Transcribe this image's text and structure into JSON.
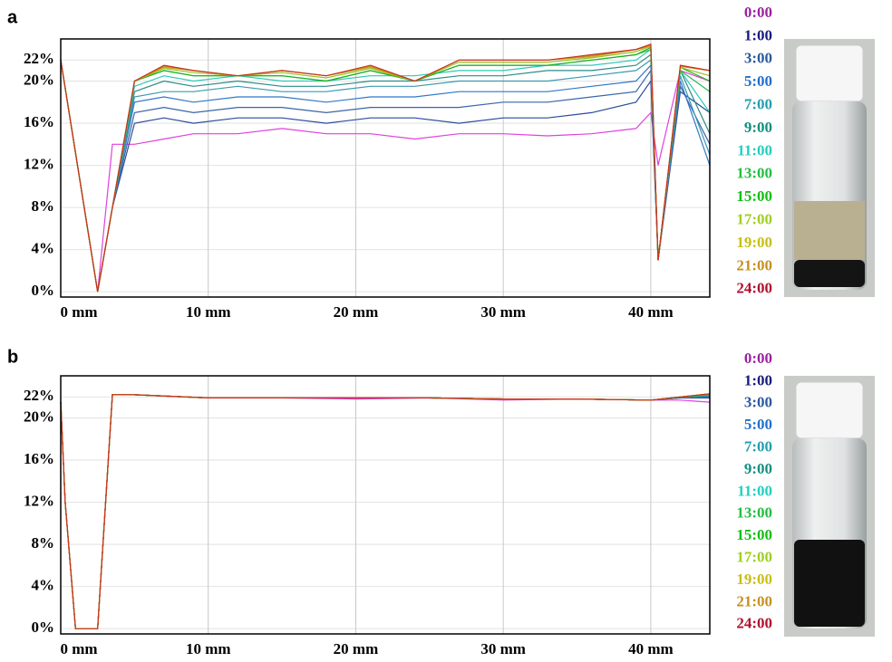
{
  "chart_data": [
    {
      "type": "line",
      "panel_label": "a",
      "x": [
        0,
        2.5,
        3.5,
        5,
        7,
        9,
        12,
        15,
        18,
        21,
        24,
        27,
        30,
        33,
        36,
        39,
        40,
        40.5,
        42,
        44
      ],
      "xlim": [
        0,
        44
      ],
      "ylim": [
        -0.5,
        24
      ],
      "xticks": [
        {
          "value": 0,
          "label": "0 mm"
        },
        {
          "value": 10,
          "label": "10 mm"
        },
        {
          "value": 20,
          "label": "20 mm"
        },
        {
          "value": 30,
          "label": "30 mm"
        },
        {
          "value": 40,
          "label": "40 mm"
        }
      ],
      "yticks": [
        {
          "value": 0,
          "label": "0%"
        },
        {
          "value": 4,
          "label": "4%"
        },
        {
          "value": 8,
          "label": "8%"
        },
        {
          "value": 12,
          "label": "12%"
        },
        {
          "value": 16,
          "label": "16%"
        },
        {
          "value": 20,
          "label": "20%"
        },
        {
          "value": 22,
          "label": "22%"
        }
      ],
      "grid": true,
      "series": [
        {
          "name": "0:00",
          "color": "#e040e0",
          "label_color": "#9a20a0",
          "values": [
            22,
            0,
            14,
            14,
            14.5,
            15,
            15,
            15.5,
            15,
            15,
            14.5,
            15,
            15,
            14.8,
            15,
            15.5,
            17,
            12,
            21,
            20
          ]
        },
        {
          "name": "1:00",
          "color": "#2a4a9a",
          "label_color": "#1a1a80",
          "values": [
            22,
            0,
            8,
            16,
            16.5,
            16,
            16.5,
            16.5,
            16,
            16.5,
            16.5,
            16,
            16.5,
            16.5,
            17,
            18,
            20,
            3,
            19,
            17
          ]
        },
        {
          "name": "3:00",
          "color": "#3a64a8",
          "label_color": "#2a5aa0",
          "values": [
            22,
            0,
            8,
            17,
            17.5,
            17,
            17.5,
            17.5,
            17,
            17.5,
            17.5,
            17.5,
            18,
            18,
            18.5,
            19,
            21,
            3,
            19.5,
            14
          ]
        },
        {
          "name": "5:00",
          "color": "#2f78c8",
          "label_color": "#1f6fd0",
          "values": [
            22,
            0,
            8,
            18,
            18.5,
            18,
            18.5,
            18.5,
            18,
            18.5,
            18.5,
            19,
            19,
            19,
            19.5,
            20,
            21.5,
            3,
            20,
            12
          ]
        },
        {
          "name": "7:00",
          "color": "#3a9ab0",
          "label_color": "#20a0b0",
          "values": [
            22,
            0,
            8,
            18.5,
            19,
            19,
            19.5,
            19,
            19,
            19.5,
            19.5,
            20,
            20,
            20,
            20.5,
            21,
            22,
            3,
            20.5,
            13
          ]
        },
        {
          "name": "9:00",
          "color": "#2a8c88",
          "label_color": "#109080",
          "values": [
            22,
            0,
            8,
            19,
            20,
            19.5,
            20,
            19.5,
            19.5,
            20,
            20,
            20.5,
            20.5,
            21,
            21,
            21.5,
            22.5,
            3,
            21,
            15
          ]
        },
        {
          "name": "11:00",
          "color": "#30c8b8",
          "label_color": "#20d0c0",
          "values": [
            22,
            0,
            8,
            19.5,
            20.5,
            20,
            20.5,
            20,
            20,
            20.5,
            20.5,
            21,
            21,
            21.5,
            21.5,
            22,
            23,
            3,
            21,
            17
          ]
        },
        {
          "name": "13:00",
          "color": "#30b850",
          "label_color": "#20c040",
          "values": [
            22,
            0,
            8,
            20,
            21,
            20.5,
            20.5,
            20.5,
            20,
            21,
            20,
            21.5,
            21.5,
            21.5,
            22,
            22.5,
            23,
            3,
            21,
            19
          ]
        },
        {
          "name": "15:00",
          "color": "#20b020",
          "label_color": "#10c010",
          "values": [
            22,
            0,
            8,
            20,
            21,
            20.5,
            20.5,
            20.5,
            20,
            21,
            20,
            21.5,
            21.5,
            21.5,
            22,
            22.5,
            23.2,
            3,
            21.3,
            20
          ]
        },
        {
          "name": "17:00",
          "color": "#98c020",
          "label_color": "#a0d020",
          "values": [
            22,
            0,
            8,
            20,
            21.2,
            20.8,
            20.5,
            20.8,
            20.3,
            21.2,
            20,
            21.8,
            21.8,
            21.8,
            22.2,
            22.8,
            23.3,
            3,
            21.3,
            20.5
          ]
        },
        {
          "name": "19:00",
          "color": "#c0b020",
          "label_color": "#c8c010",
          "values": [
            22,
            0,
            8,
            20,
            21.3,
            21,
            20.5,
            21,
            20.5,
            21.3,
            20,
            22,
            22,
            22,
            22.3,
            23,
            23.3,
            3,
            21.4,
            21
          ]
        },
        {
          "name": "21:00",
          "color": "#c88a20",
          "label_color": "#c89020",
          "values": [
            22,
            0,
            8,
            20,
            21.4,
            21,
            20.5,
            21,
            20.5,
            21.4,
            20,
            22,
            22,
            22,
            22.4,
            23,
            23.4,
            3,
            21.4,
            21
          ]
        },
        {
          "name": "24:00",
          "color": "#c83020",
          "label_color": "#b01030",
          "values": [
            22,
            0,
            8,
            20,
            21.5,
            21,
            20.5,
            21,
            20.5,
            21.5,
            20,
            22,
            22,
            22,
            22.5,
            23,
            23.5,
            3,
            21.5,
            21
          ]
        }
      ]
    },
    {
      "type": "line",
      "panel_label": "b",
      "x": [
        0,
        0.3,
        1,
        2.5,
        3.5,
        5,
        10,
        15,
        20,
        25,
        30,
        35,
        40,
        42,
        44
      ],
      "xlim": [
        0,
        44
      ],
      "ylim": [
        -0.5,
        24
      ],
      "xticks": [
        {
          "value": 0,
          "label": "0 mm"
        },
        {
          "value": 10,
          "label": "10 mm"
        },
        {
          "value": 20,
          "label": "20 mm"
        },
        {
          "value": 30,
          "label": "30 mm"
        },
        {
          "value": 40,
          "label": "40 mm"
        }
      ],
      "yticks": [
        {
          "value": 0,
          "label": "0%"
        },
        {
          "value": 4,
          "label": "4%"
        },
        {
          "value": 8,
          "label": "8%"
        },
        {
          "value": 12,
          "label": "12%"
        },
        {
          "value": 16,
          "label": "16%"
        },
        {
          "value": 20,
          "label": "20%"
        },
        {
          "value": 22,
          "label": "22%"
        }
      ],
      "grid": true,
      "series": [
        {
          "name": "0:00",
          "color": "#e040e0",
          "label_color": "#9a20a0",
          "values": [
            21.5,
            12,
            0,
            0,
            22.2,
            22.2,
            21.9,
            21.9,
            21.8,
            21.9,
            21.7,
            21.8,
            21.7,
            21.7,
            21.5
          ]
        },
        {
          "name": "1:00",
          "color": "#2a4a9a",
          "label_color": "#1a1a80",
          "values": [
            21.5,
            12,
            0,
            0,
            22.2,
            22.2,
            21.9,
            21.9,
            21.9,
            21.9,
            21.8,
            21.8,
            21.7,
            21.9,
            21.9
          ]
        },
        {
          "name": "3:00",
          "color": "#3a64a8",
          "label_color": "#2a5aa0",
          "values": [
            21.5,
            12,
            0,
            0,
            22.2,
            22.2,
            21.9,
            21.9,
            21.9,
            21.9,
            21.8,
            21.8,
            21.7,
            21.9,
            22
          ]
        },
        {
          "name": "5:00",
          "color": "#2f78c8",
          "label_color": "#1f6fd0",
          "values": [
            21.5,
            12,
            0,
            0,
            22.2,
            22.2,
            21.9,
            21.9,
            21.9,
            21.9,
            21.8,
            21.8,
            21.7,
            22,
            22
          ]
        },
        {
          "name": "7:00",
          "color": "#3a9ab0",
          "label_color": "#20a0b0",
          "values": [
            21.5,
            12,
            0,
            0,
            22.2,
            22.2,
            21.9,
            21.9,
            21.9,
            21.9,
            21.8,
            21.8,
            21.7,
            22,
            22.1
          ]
        },
        {
          "name": "9:00",
          "color": "#2a8c88",
          "label_color": "#109080",
          "values": [
            21.5,
            12,
            0,
            0,
            22.2,
            22.2,
            21.9,
            21.9,
            21.9,
            21.9,
            21.8,
            21.8,
            21.7,
            22,
            22.1
          ]
        },
        {
          "name": "11:00",
          "color": "#30c8b8",
          "label_color": "#20d0c0",
          "values": [
            21.5,
            12,
            0,
            0,
            22.2,
            22.2,
            21.9,
            21.9,
            21.9,
            21.9,
            21.8,
            21.8,
            21.7,
            22,
            22.2
          ]
        },
        {
          "name": "13:00",
          "color": "#30b850",
          "label_color": "#20c040",
          "values": [
            21.5,
            12,
            0,
            0,
            22.2,
            22.2,
            21.9,
            21.9,
            21.9,
            21.9,
            21.8,
            21.8,
            21.7,
            22,
            22.2
          ]
        },
        {
          "name": "15:00",
          "color": "#20b020",
          "label_color": "#10c010",
          "values": [
            21.5,
            12,
            0,
            0,
            22.2,
            22.2,
            21.9,
            21.9,
            21.9,
            21.9,
            21.8,
            21.8,
            21.7,
            22,
            22.3
          ]
        },
        {
          "name": "17:00",
          "color": "#98c020",
          "label_color": "#a0d020",
          "values": [
            21.5,
            12,
            0,
            0,
            22.2,
            22.2,
            21.9,
            21.9,
            21.9,
            21.9,
            21.8,
            21.8,
            21.7,
            22,
            22.3
          ]
        },
        {
          "name": "19:00",
          "color": "#c0b020",
          "label_color": "#c8c010",
          "values": [
            21.5,
            12,
            0,
            0,
            22.2,
            22.2,
            21.9,
            21.9,
            21.9,
            21.9,
            21.8,
            21.8,
            21.7,
            22,
            22.3
          ]
        },
        {
          "name": "21:00",
          "color": "#c88a20",
          "label_color": "#c89020",
          "values": [
            21.5,
            12,
            0,
            0,
            22.2,
            22.2,
            21.9,
            21.9,
            21.9,
            21.9,
            21.8,
            21.8,
            21.7,
            22,
            22.3
          ]
        },
        {
          "name": "24:00",
          "color": "#c83020",
          "label_color": "#b01030",
          "values": [
            21.5,
            12,
            0,
            0,
            22.2,
            22.2,
            21.9,
            21.9,
            21.9,
            21.9,
            21.8,
            21.8,
            21.7,
            22,
            22.3
          ]
        }
      ]
    }
  ]
}
